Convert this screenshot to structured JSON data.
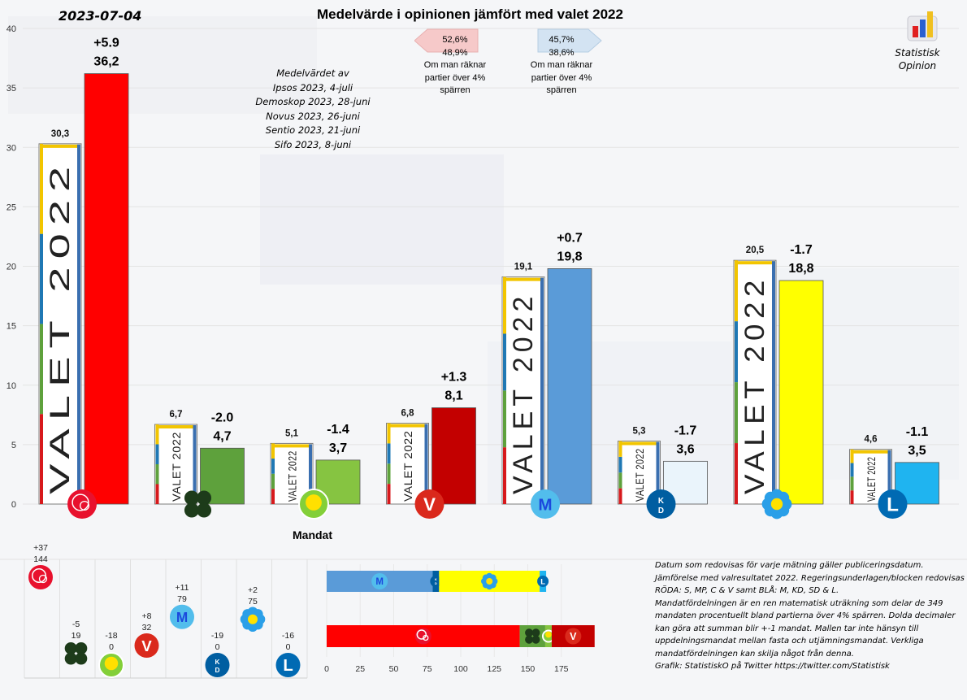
{
  "header": {
    "date": "2023-07-04",
    "title": "Medelvärde  i opinionen jämfört med valet 2022",
    "brand_line1": "Statistisk",
    "brand_line2": "Opinion"
  },
  "sources": {
    "heading": "Medelvärdet av",
    "lines": [
      "Ipsos 2023, 4-juli",
      "Demoskop 2023, 28-juni",
      "Novus 2023, 26-juni",
      "Sentio 2023, 21-juni",
      "Sifo 2023, 8-juni"
    ]
  },
  "blocks": {
    "left": {
      "main": "52,6%",
      "sub": "48,9%",
      "line1": "Om man räknar",
      "line2": "partier över 4%",
      "line3": "spärren",
      "color": "#f4c6c6"
    },
    "right": {
      "main": "45,7%",
      "sub": "38,6%",
      "line1": "Om man räknar",
      "line2": "partier över 4%",
      "line3": "spärren",
      "color": "#cfe0f0"
    }
  },
  "chart_data": [
    {
      "type": "bar",
      "title": "Medelvärde  i opinionen jämfört med valet 2022",
      "ylim": [
        0,
        40
      ],
      "yticks": [
        0,
        5,
        10,
        15,
        20,
        25,
        30,
        35,
        40
      ],
      "grid": true,
      "election_label": "VALET 2022",
      "parties": [
        {
          "party": "S",
          "icon": "rose-icon",
          "valet": 30.3,
          "valet_label": "30,3",
          "poll": 36.2,
          "poll_label": "36,2",
          "diff": "+5.9",
          "color": "#ff0000"
        },
        {
          "party": "C",
          "icon": "clover-icon",
          "valet": 6.7,
          "valet_label": "6,7",
          "poll": 4.7,
          "poll_label": "4,7",
          "diff": "-2.0",
          "color": "#5ea13c"
        },
        {
          "party": "MP",
          "icon": "dandelion-icon",
          "valet": 5.1,
          "valet_label": "5,1",
          "poll": 3.7,
          "poll_label": "3,7",
          "diff": "-1.4",
          "color": "#86c441"
        },
        {
          "party": "V",
          "icon": "v-icon",
          "valet": 6.8,
          "valet_label": "6,8",
          "poll": 8.1,
          "poll_label": "8,1",
          "diff": "+1.3",
          "color": "#c30000"
        },
        {
          "party": "M",
          "icon": "m-icon",
          "valet": 19.1,
          "valet_label": "19,1",
          "poll": 19.8,
          "poll_label": "19,8",
          "diff": "+0.7",
          "color": "#5a9bd8"
        },
        {
          "party": "KD",
          "icon": "kd-icon",
          "valet": 5.3,
          "valet_label": "5,3",
          "poll": 3.6,
          "poll_label": "3,6",
          "diff": "-1.7",
          "color": "#eaf4fb"
        },
        {
          "party": "SD",
          "icon": "anemone-icon",
          "valet": 20.5,
          "valet_label": "20,5",
          "poll": 18.8,
          "poll_label": "18,8",
          "diff": "-1.7",
          "color": "#ffff00"
        },
        {
          "party": "L",
          "icon": "l-icon",
          "valet": 4.6,
          "valet_label": "4,6",
          "poll": 3.5,
          "poll_label": "3,5",
          "diff": "-1.1",
          "color": "#1fb4f0"
        }
      ]
    },
    {
      "type": "scatter",
      "title": "Mandat",
      "points": [
        {
          "party": "S",
          "icon": "rose-icon",
          "seats": 144,
          "change": "+37"
        },
        {
          "party": "C",
          "icon": "clover-icon",
          "seats": 19,
          "change": "-5"
        },
        {
          "party": "MP",
          "icon": "dandelion-icon",
          "seats": 0,
          "change": "-18"
        },
        {
          "party": "V",
          "icon": "v-icon",
          "seats": 32,
          "change": "+8"
        },
        {
          "party": "M",
          "icon": "m-icon",
          "seats": 79,
          "change": "+11"
        },
        {
          "party": "KD",
          "icon": "kd-icon",
          "seats": 0,
          "change": "-19"
        },
        {
          "party": "SD",
          "icon": "anemone-icon",
          "seats": 75,
          "change": "+2"
        },
        {
          "party": "L",
          "icon": "l-icon",
          "seats": 0,
          "change": "-16"
        }
      ]
    },
    {
      "type": "bar",
      "orientation": "horizontal-stacked",
      "xlim": [
        0,
        200
      ],
      "xticks": [
        0,
        25,
        50,
        75,
        100,
        125,
        150,
        175
      ],
      "series": [
        {
          "name": "BLÅ",
          "segments": [
            {
              "party": "M",
              "seats": 79,
              "color": "#5a9bd8"
            },
            {
              "party": "KD",
              "seats": 0,
              "color": "#005ea1"
            },
            {
              "party": "SD",
              "seats": 75,
              "color": "#ffff00"
            },
            {
              "party": "L",
              "seats": 0,
              "color": "#1fb4f0"
            }
          ]
        },
        {
          "name": "RÖDA",
          "segments": [
            {
              "party": "S",
              "seats": 144,
              "color": "#ff0000"
            },
            {
              "party": "C",
              "seats": 19,
              "color": "#5ea13c"
            },
            {
              "party": "MP",
              "seats": 0,
              "color": "#86c441"
            },
            {
              "party": "V",
              "seats": 32,
              "color": "#c30000"
            }
          ]
        }
      ]
    }
  ],
  "mandat_title": "Mandat",
  "notes": [
    "Datum som redovisas för varje mätning gäller publiceringsdatum.",
    "Jämförelse med valresultatet 2022. Regeringsunderlagen/blocken redovisas",
    "RÖDA: S, MP, C & V samt BLÅ: M, KD, SD & L.",
    "Mandatfördelningen är en ren matematisk uträkning som delar de 349",
    "mandaten procentuellt bland partierna över 4% spärren. Dolda decimaler",
    "kan göra att summan blir +-1 mandat. Mallen tar inte hänsyn till",
    "uppdelningsmandat mellan fasta och  utjämningsmandat. Verkliga",
    "mandatfördelningen kan skilja något från denna.",
    "Grafik: StatistiskO på Twitter  https://twitter.com/Statistisk"
  ]
}
